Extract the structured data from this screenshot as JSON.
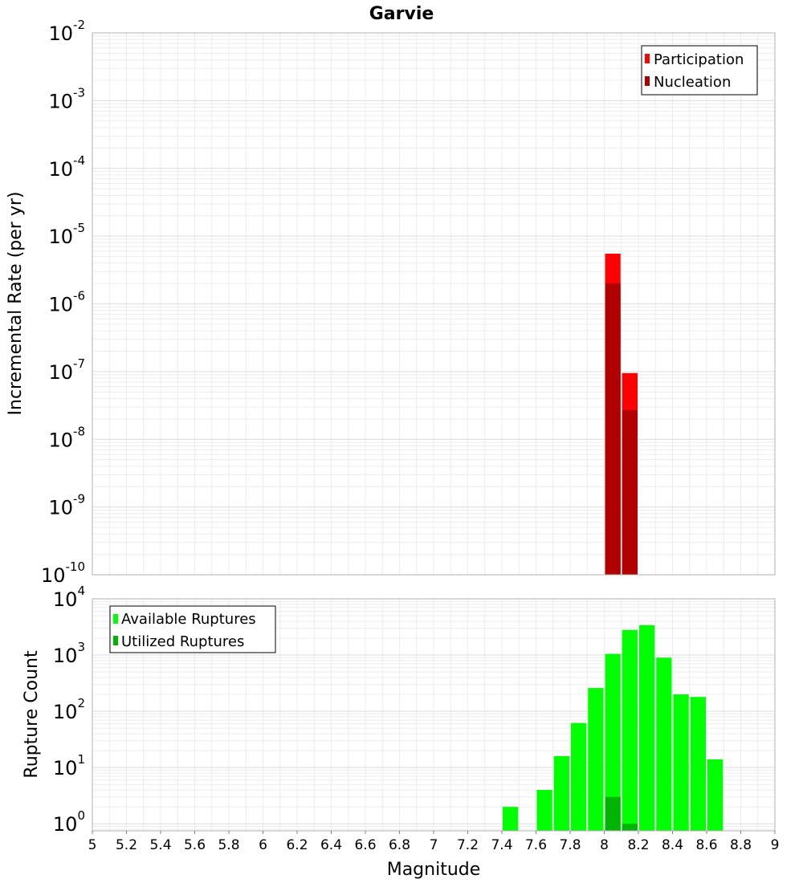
{
  "chart_data": [
    {
      "type": "bar",
      "title": "Garvie",
      "xlabel": "",
      "ylabel": "Incremental Rate (per yr)",
      "xlim": [
        5,
        9
      ],
      "ylim": [
        1e-10,
        0.01
      ],
      "yscale": "log",
      "grid": true,
      "legend_position": "top-right",
      "bin_width": 0.1,
      "y_tick_labels": [
        {
          "base": "10",
          "exp": "-10",
          "value": 1e-10
        },
        {
          "base": "10",
          "exp": "-9",
          "value": 1e-09
        },
        {
          "base": "10",
          "exp": "-8",
          "value": 1e-08
        },
        {
          "base": "10",
          "exp": "-7",
          "value": 1e-07
        },
        {
          "base": "10",
          "exp": "-6",
          "value": 1e-06
        },
        {
          "base": "10",
          "exp": "-5",
          "value": 1e-05
        },
        {
          "base": "10",
          "exp": "-4",
          "value": 0.0001
        },
        {
          "base": "10",
          "exp": "-3",
          "value": 0.001
        },
        {
          "base": "10",
          "exp": "-2",
          "value": 0.01
        }
      ],
      "series": [
        {
          "name": "Participation",
          "color": "#ff0000",
          "x": [
            8.05,
            8.15
          ],
          "values": [
            5.5e-06,
            9.5e-08
          ]
        },
        {
          "name": "Nucleation",
          "color": "#b00000",
          "x": [
            8.05,
            8.15
          ],
          "values": [
            2e-06,
            2.7e-08
          ]
        }
      ]
    },
    {
      "type": "bar",
      "title": "",
      "xlabel": "Magnitude",
      "ylabel": "Rupture Count",
      "xlim": [
        5,
        9
      ],
      "ylim": [
        0.75,
        10000
      ],
      "yscale": "log",
      "grid": true,
      "legend_position": "top-left",
      "bin_width": 0.1,
      "x_tick_labels": [
        "5",
        "5.2",
        "5.4",
        "5.6",
        "5.8",
        "6",
        "6.2",
        "6.4",
        "6.6",
        "6.8",
        "7",
        "7.2",
        "7.4",
        "7.6",
        "7.8",
        "8",
        "8.2",
        "8.4",
        "8.6",
        "8.8",
        "9"
      ],
      "y_tick_labels": [
        {
          "base": "10",
          "exp": "0",
          "value": 1
        },
        {
          "base": "10",
          "exp": "1",
          "value": 10
        },
        {
          "base": "10",
          "exp": "2",
          "value": 100
        },
        {
          "base": "10",
          "exp": "3",
          "value": 1000
        },
        {
          "base": "10",
          "exp": "4",
          "value": 10000
        }
      ],
      "series": [
        {
          "name": "Available Ruptures",
          "color": "#00ff00",
          "x": [
            7.45,
            7.65,
            7.75,
            7.85,
            7.95,
            8.05,
            8.15,
            8.25,
            8.35,
            8.45,
            8.55,
            8.65
          ],
          "values": [
            2,
            4,
            16,
            62,
            260,
            1050,
            2800,
            3400,
            900,
            200,
            180,
            14
          ]
        },
        {
          "name": "Utilized Ruptures",
          "color": "#00b400",
          "x": [
            8.05,
            8.15
          ],
          "values": [
            3,
            1
          ]
        }
      ]
    }
  ]
}
